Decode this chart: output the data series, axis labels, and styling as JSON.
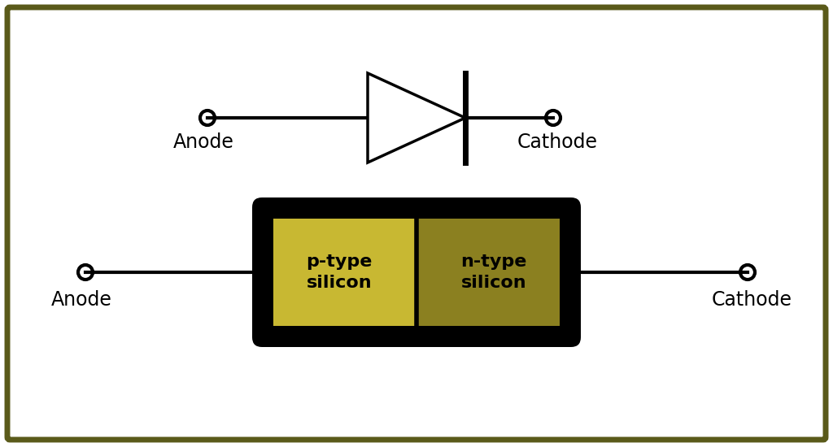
{
  "bg_color": "#ffffff",
  "border_color": "#5a5a1a",
  "p_type_color": "#c8b832",
  "n_type_color": "#8b8020",
  "black_color": "#000000",
  "p_type_label": "p-type\nsilicon",
  "n_type_label": "n-type\nsilicon",
  "anode_label_top": "Anode",
  "cathode_label_top": "Cathode",
  "anode_label_bot": "Anode",
  "cathode_label_bot": "Cathode",
  "label_fontsize": 17,
  "silicon_fontsize": 16,
  "figwidth": 10.24,
  "figheight": 5.5,
  "dpi": 100
}
